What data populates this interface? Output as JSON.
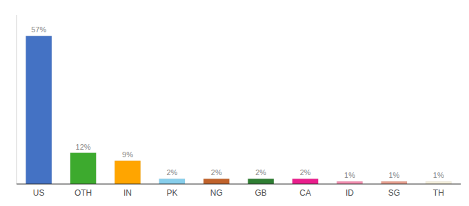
{
  "chart_data": {
    "type": "bar",
    "categories": [
      "US",
      "OTH",
      "IN",
      "PK",
      "NG",
      "GB",
      "CA",
      "ID",
      "SG",
      "TH"
    ],
    "values": [
      57,
      12,
      9,
      2,
      2,
      2,
      2,
      1,
      1,
      1
    ],
    "value_labels": [
      "57%",
      "12%",
      "9%",
      "2%",
      "2%",
      "2%",
      "2%",
      "1%",
      "1%",
      "1%"
    ],
    "colors": [
      "#4472C4",
      "#3DAA2E",
      "#FFA500",
      "#87CEEB",
      "#C0622B",
      "#2E7D32",
      "#E91E8C",
      "#F48FB1",
      "#E8A090",
      "#F5F0DC"
    ],
    "ylim": [
      0,
      65
    ],
    "data_labels": true,
    "tick_labels": "x",
    "grid": false
  }
}
